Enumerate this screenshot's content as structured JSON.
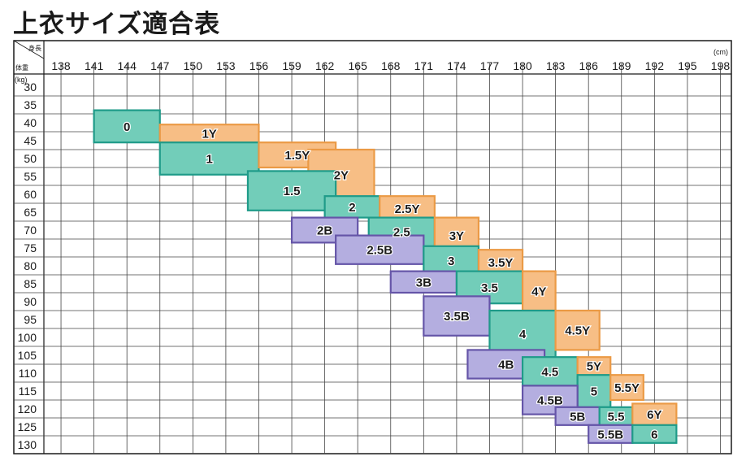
{
  "title": "上衣サイズ適合表",
  "colors": {
    "frame": "#1a1a1a",
    "grid": "#444444",
    "Y_fill": "#f7be85",
    "Y_stroke": "#eb9a45",
    "A_fill": "#72cdb9",
    "A_stroke": "#1f9b89",
    "B_fill": "#b4aee0",
    "B_stroke": "#6555a8"
  },
  "chart_data": {
    "type": "heatmap",
    "title": "上衣サイズ適合表",
    "corner_top": "身長",
    "corner_bottom": "体重",
    "x_unit": "(cm)",
    "y_unit": "(kg)",
    "x_ticks": [
      "138",
      "141",
      "144",
      "147",
      "150",
      "153",
      "156",
      "159",
      "162",
      "165",
      "168",
      "171",
      "174",
      "177",
      "180",
      "183",
      "186",
      "189",
      "192",
      "195",
      "198"
    ],
    "y_ticks": [
      "30",
      "35",
      "40",
      "45",
      "50",
      "55",
      "60",
      "65",
      "70",
      "75",
      "80",
      "85",
      "90",
      "95",
      "100",
      "105",
      "110",
      "115",
      "120",
      "125",
      "130"
    ],
    "xlim": [
      136,
      199
    ],
    "ylim": [
      27.5,
      132.5
    ],
    "grid": true,
    "sizes": [
      {
        "label": "0",
        "type": "A",
        "height": [
          141,
          147
        ],
        "weight": [
          36.5,
          45.5
        ]
      },
      {
        "label": "1Y",
        "type": "Y",
        "height": [
          147,
          156
        ],
        "weight": [
          40.5,
          45.5
        ]
      },
      {
        "label": "1",
        "type": "A",
        "height": [
          147,
          156
        ],
        "weight": [
          45.5,
          54.5
        ]
      },
      {
        "label": "1.5Y",
        "type": "Y",
        "height": [
          156,
          163
        ],
        "weight": [
          45.5,
          52.5
        ]
      },
      {
        "label": "2Y",
        "type": "Y",
        "height": [
          160.5,
          166.5
        ],
        "weight": [
          47.5,
          61.5
        ]
      },
      {
        "label": "1.5",
        "type": "A",
        "height": [
          155,
          163
        ],
        "weight": [
          53.5,
          64.5
        ]
      },
      {
        "label": "2",
        "type": "A",
        "height": [
          162,
          167
        ],
        "weight": [
          60.5,
          66.5
        ]
      },
      {
        "label": "2.5Y",
        "type": "Y",
        "height": [
          167,
          172
        ],
        "weight": [
          60.5,
          67.5
        ]
      },
      {
        "label": "2B",
        "type": "B",
        "height": [
          159,
          165
        ],
        "weight": [
          66.5,
          73.5
        ]
      },
      {
        "label": "2.5",
        "type": "A",
        "height": [
          166,
          172
        ],
        "weight": [
          66.5,
          74.5
        ]
      },
      {
        "label": "3Y",
        "type": "Y",
        "height": [
          172,
          176
        ],
        "weight": [
          66.5,
          76.5
        ]
      },
      {
        "label": "2.5B",
        "type": "B",
        "height": [
          163,
          171
        ],
        "weight": [
          71.5,
          79.5
        ]
      },
      {
        "label": "3",
        "type": "A",
        "height": [
          171,
          176
        ],
        "weight": [
          74.5,
          82.5
        ]
      },
      {
        "label": "3.5Y",
        "type": "Y",
        "height": [
          176,
          180
        ],
        "weight": [
          75.5,
          82.5
        ]
      },
      {
        "label": "3B",
        "type": "B",
        "height": [
          168,
          174
        ],
        "weight": [
          81.5,
          87.5
        ]
      },
      {
        "label": "3.5",
        "type": "A",
        "height": [
          174,
          180
        ],
        "weight": [
          81.5,
          90.5
        ]
      },
      {
        "label": "4Y",
        "type": "Y",
        "height": [
          180,
          183
        ],
        "weight": [
          81.5,
          92.5
        ]
      },
      {
        "label": "3.5B",
        "type": "B",
        "height": [
          171,
          177
        ],
        "weight": [
          88.5,
          99.5
        ]
      },
      {
        "label": "4",
        "type": "A",
        "height": [
          177,
          183
        ],
        "weight": [
          92.5,
          105.5
        ]
      },
      {
        "label": "4.5Y",
        "type": "Y",
        "height": [
          183,
          187
        ],
        "weight": [
          92.5,
          103.5
        ]
      },
      {
        "label": "4B",
        "type": "B",
        "height": [
          175,
          182
        ],
        "weight": [
          103.5,
          111.5
        ]
      },
      {
        "label": "4.5",
        "type": "A",
        "height": [
          180,
          185
        ],
        "weight": [
          105.5,
          113.5
        ]
      },
      {
        "label": "5Y",
        "type": "Y",
        "height": [
          185,
          188
        ],
        "weight": [
          105.5,
          110.5
        ]
      },
      {
        "label": "5",
        "type": "A",
        "height": [
          185,
          188
        ],
        "weight": [
          110.5,
          119.5
        ]
      },
      {
        "label": "5.5Y",
        "type": "Y",
        "height": [
          188,
          191
        ],
        "weight": [
          110.5,
          117.5
        ]
      },
      {
        "label": "4.5B",
        "type": "B",
        "height": [
          180,
          185
        ],
        "weight": [
          113.5,
          121.5
        ]
      },
      {
        "label": "5B",
        "type": "B",
        "height": [
          183,
          187
        ],
        "weight": [
          119.5,
          124.5
        ]
      },
      {
        "label": "5.5",
        "type": "A",
        "height": [
          187,
          190
        ],
        "weight": [
          119.5,
          124.5
        ]
      },
      {
        "label": "6Y",
        "type": "Y",
        "height": [
          190,
          194
        ],
        "weight": [
          118.5,
          124.5
        ]
      },
      {
        "label": "5.5B",
        "type": "B",
        "height": [
          186,
          190
        ],
        "weight": [
          124.5,
          129.5
        ]
      },
      {
        "label": "6",
        "type": "A",
        "height": [
          190,
          194
        ],
        "weight": [
          124.5,
          129.5
        ]
      }
    ]
  }
}
